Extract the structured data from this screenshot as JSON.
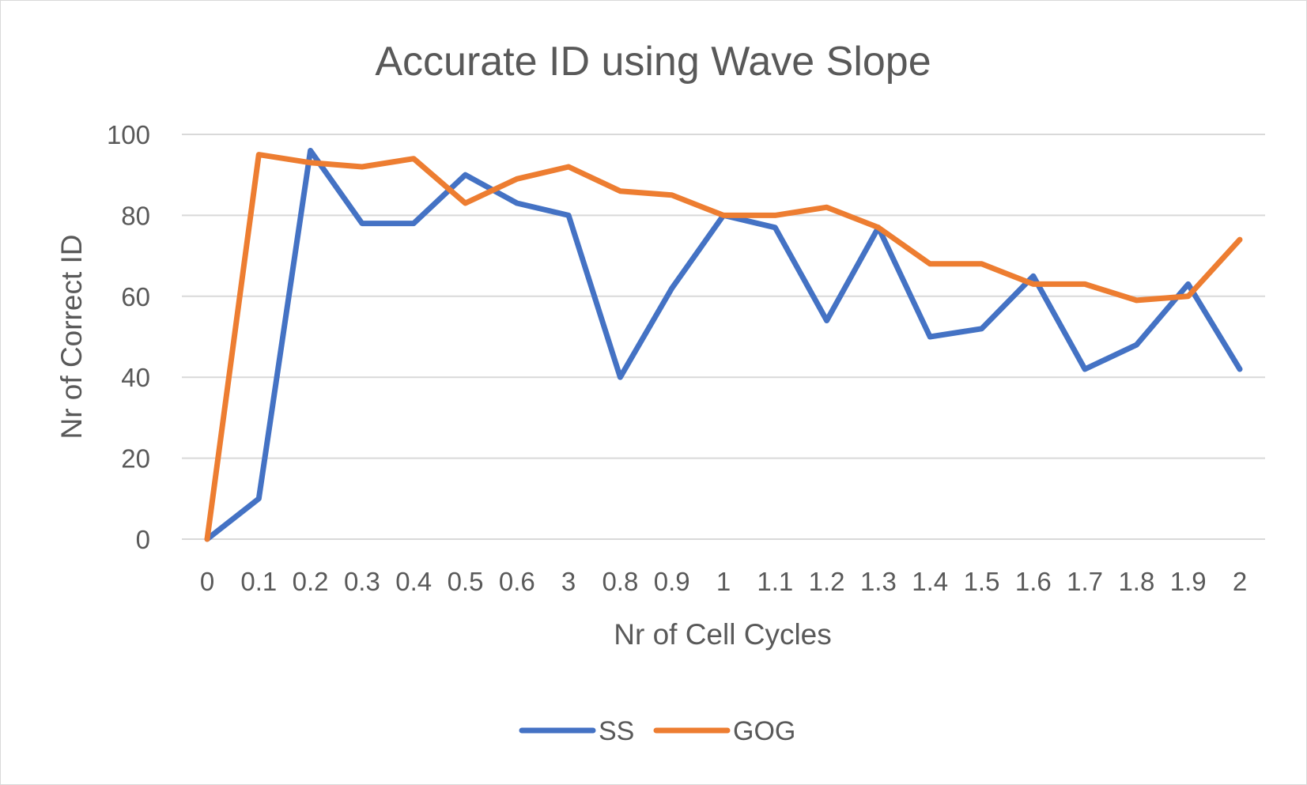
{
  "chart_data": {
    "type": "line",
    "title": "Accurate ID using Wave Slope",
    "xlabel": "Nr of Cell Cycles",
    "ylabel": "Nr of Correct ID",
    "categories": [
      "0",
      "0.1",
      "0.2",
      "0.3",
      "0.4",
      "0.5",
      "0.6",
      "3",
      "0.8",
      "0.9",
      "1",
      "1.1",
      "1.2",
      "1.3",
      "1.4",
      "1.5",
      "1.6",
      "1.7",
      "1.8",
      "1.9",
      "2"
    ],
    "ylim": [
      0,
      100
    ],
    "yticks": [
      "0",
      "20",
      "40",
      "60",
      "80",
      "100"
    ],
    "grid": true,
    "legend_position": "bottom",
    "series": [
      {
        "name": "SS",
        "color": "#4472c4",
        "values": [
          0,
          10,
          96,
          78,
          78,
          90,
          83,
          80,
          40,
          62,
          80,
          77,
          54,
          77,
          50,
          52,
          65,
          42,
          48,
          63,
          42
        ]
      },
      {
        "name": "GOG",
        "color": "#ed7d31",
        "values": [
          0,
          95,
          93,
          92,
          94,
          83,
          89,
          92,
          86,
          85,
          80,
          80,
          82,
          77,
          68,
          68,
          63,
          63,
          59,
          60,
          74
        ]
      }
    ]
  }
}
